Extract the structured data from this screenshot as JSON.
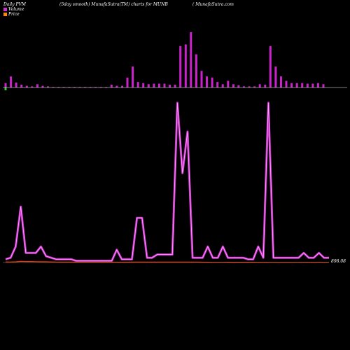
{
  "header": {
    "left": "Daily PVM",
    "middle": "(5day smooth) MunafaSutra(TM) charts for MUNB",
    "right": "( MunafaSutra.com"
  },
  "legend": [
    {
      "label": "Volume",
      "color": "#cc33cc"
    },
    {
      "label": "Price",
      "color": "#ff8800"
    }
  ],
  "colors": {
    "background": "#000000",
    "volume_bar": "#cc22cc",
    "volume_bar_first": "#33cc33",
    "pvm_line": "#cc33cc",
    "pvm_line_inner": "#ffaaff",
    "price_line": "#ff3300",
    "axis": "#ffffff"
  },
  "last_value_label": "898.08",
  "chart_data": [
    {
      "type": "bar",
      "name": "volume",
      "values": [
        8,
        20,
        9,
        5,
        3,
        2,
        6,
        3,
        2,
        1,
        1,
        1,
        1,
        1,
        1,
        1,
        1,
        1,
        1,
        1,
        5,
        3,
        3,
        18,
        38,
        10,
        8,
        6,
        7,
        7,
        7,
        5,
        5,
        75,
        78,
        100,
        60,
        30,
        20,
        18,
        10,
        6,
        12,
        6,
        4,
        2,
        2,
        2,
        6,
        5,
        75,
        38,
        20,
        12,
        8,
        8,
        8,
        7,
        7,
        8,
        6
      ],
      "first_bar_negative": 4
    },
    {
      "type": "line",
      "name": "pvm",
      "values": [
        2,
        3,
        10,
        35,
        6,
        6,
        6,
        10,
        4,
        3,
        2,
        2,
        2,
        2,
        1,
        1,
        1,
        1,
        1,
        1,
        1,
        1,
        8,
        2,
        2,
        2,
        28,
        28,
        3,
        3,
        5,
        5,
        5,
        5,
        100,
        56,
        82,
        3,
        3,
        3,
        10,
        3,
        3,
        10,
        3,
        3,
        3,
        3,
        2,
        2,
        10,
        3,
        100,
        3,
        3,
        3,
        3,
        3,
        3,
        6,
        3,
        3,
        6,
        3,
        3
      ]
    },
    {
      "type": "line",
      "name": "price",
      "values": [
        1,
        1,
        1.2,
        2,
        1.8,
        1.7,
        1.5,
        1.4,
        1.3,
        1.1,
        0.9,
        0.8,
        0.7,
        0.7,
        0.6,
        0.6,
        0.6,
        0.6,
        0.6,
        0.6,
        0.6,
        0.6,
        0.6,
        0.6,
        0.6,
        0.7,
        0.8,
        0.8,
        0.7,
        0.7,
        0.7,
        0.7,
        0.7,
        0.7,
        0.7,
        0.7,
        0.7,
        0.7,
        0.7,
        0.6,
        0.5,
        0.4,
        0.4,
        0.4,
        0.5,
        0.5,
        0.5,
        0.5,
        0.5,
        0.5,
        0.4,
        0.4,
        0.3,
        0.3,
        0.3,
        0.3,
        0.3,
        0.3,
        0.3,
        0.4,
        0.4,
        0.4,
        0.4,
        0.4,
        0.3
      ]
    }
  ]
}
